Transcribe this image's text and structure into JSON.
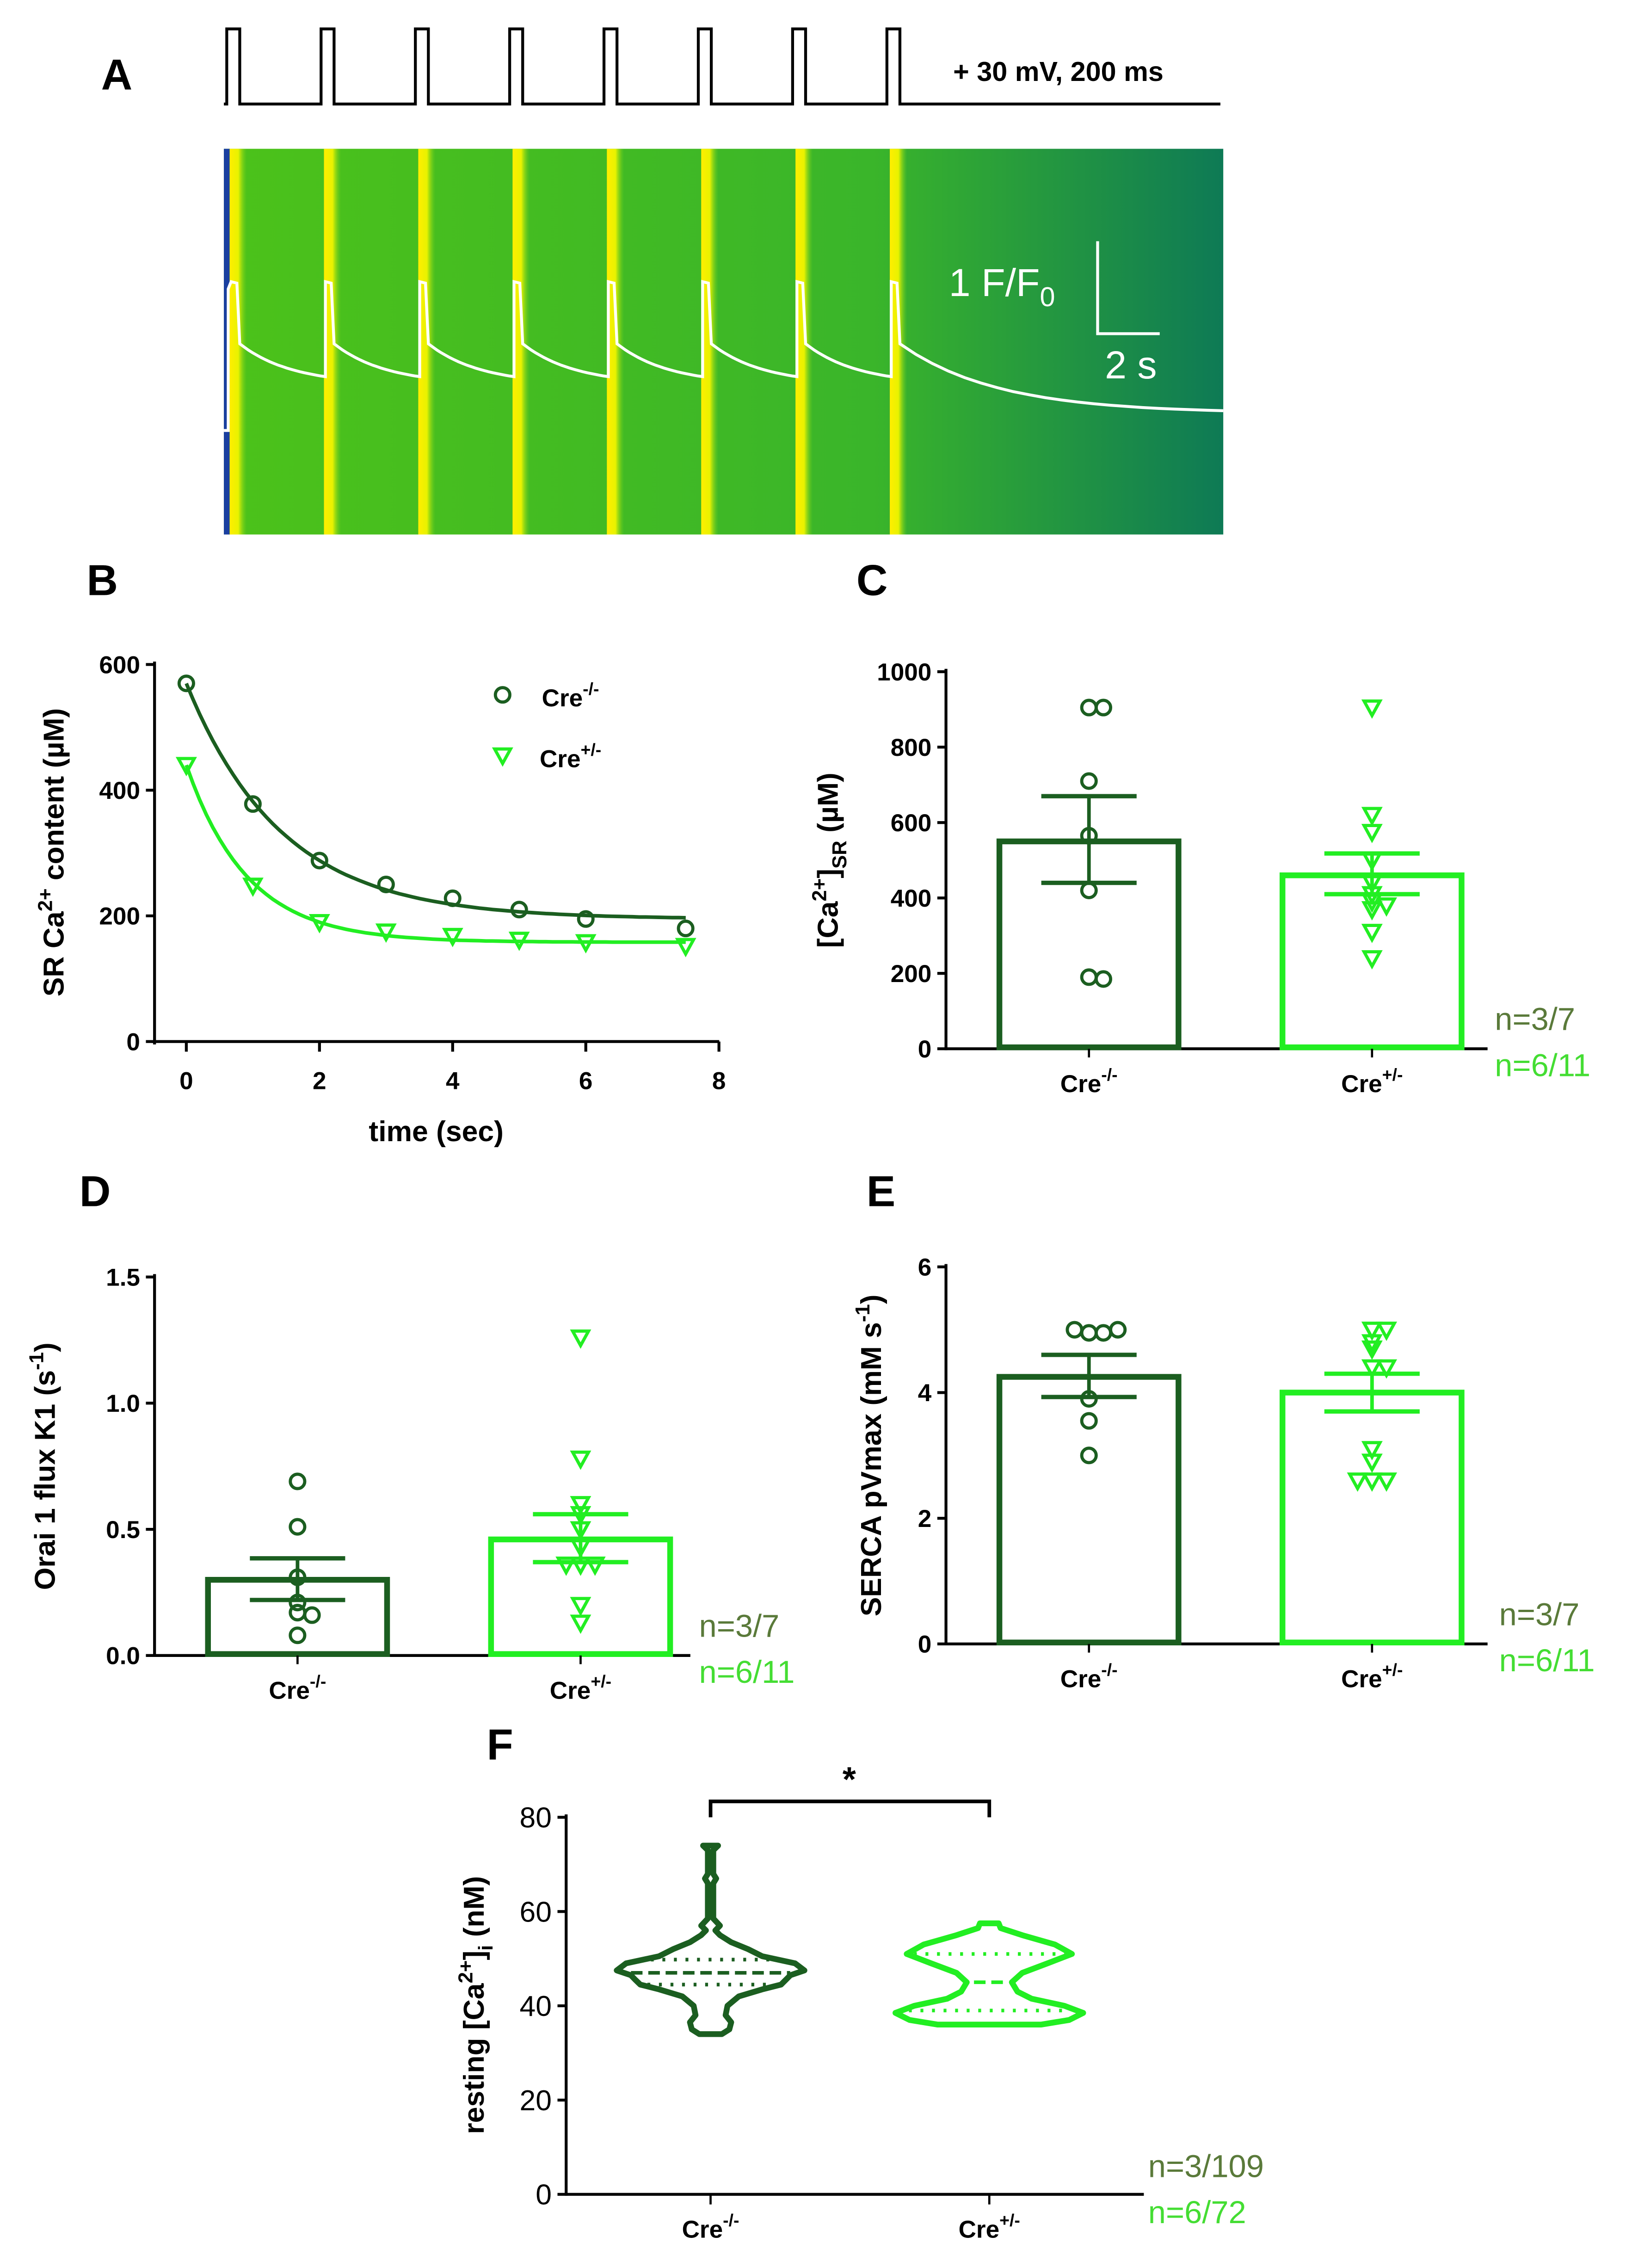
{
  "colors": {
    "ko": "#1b5e20",
    "het": "#22ee22",
    "n_ko": "#5a7a3a",
    "n_het": "#44dd33"
  },
  "panel_labels": {
    "a": "A",
    "b": "B",
    "c": "C",
    "d": "D",
    "e": "E",
    "f": "F"
  },
  "groups": {
    "base": "Cre",
    "ko_sup": "-/-",
    "het_sup": "+/-"
  },
  "panel_a": {
    "protocol_label": "+ 30 mV, 200 ms",
    "pulse_count": 8,
    "scale_y": "1 F/F",
    "scale_y_sub": "0",
    "scale_x": "2 s"
  },
  "chart_data": [
    {
      "panel": "B",
      "type": "line",
      "xlabel": "time (sec)",
      "ylabel_parts": [
        "SR  Ca",
        "2+",
        " content (µM)"
      ],
      "xlim": [
        0,
        8
      ],
      "ylim": [
        0,
        600
      ],
      "xticks": [
        "0",
        "2",
        "4",
        "6",
        "8"
      ],
      "yticks": [
        "0",
        "200",
        "400",
        "600"
      ],
      "legend": "top-right",
      "x": [
        0,
        1,
        2,
        3,
        4,
        5,
        6,
        7.5
      ],
      "series": [
        {
          "name": "Cre-/-",
          "marker": "circle",
          "values": [
            570,
            378,
            288,
            250,
            228,
            210,
            195,
            180
          ],
          "fit_plateau": 195
        },
        {
          "name": "Cre+/-",
          "marker": "triangle-down",
          "values": [
            440,
            248,
            190,
            175,
            168,
            162,
            158,
            152
          ],
          "fit_plateau": 158
        }
      ]
    },
    {
      "panel": "C",
      "type": "bar",
      "ylabel_parts": [
        "[Ca",
        "2+",
        "]",
        "SR",
        " (µM)"
      ],
      "ylim": [
        0,
        1000
      ],
      "yticks": [
        "0",
        "200",
        "400",
        "600",
        "800",
        "1000"
      ],
      "bars": [
        {
          "mean": 550,
          "sem_low": 440,
          "sem_high": 670,
          "points": [
            905,
            905,
            710,
            565,
            420,
            190,
            185
          ]
        },
        {
          "mean": 460,
          "sem_low": 410,
          "sem_high": 518,
          "points": [
            905,
            620,
            575,
            500,
            440,
            410,
            390,
            380,
            370,
            310,
            240
          ]
        }
      ],
      "n_labels": [
        "n=3/7",
        "n=6/11"
      ]
    },
    {
      "panel": "D",
      "type": "bar",
      "ylabel_parts": [
        "Orai 1 flux K1 (s",
        "-1",
        ")"
      ],
      "ylim": [
        0,
        1.5
      ],
      "yticks": [
        "0.0",
        "0.5",
        "1.0",
        "1.5"
      ],
      "bars": [
        {
          "mean": 0.3,
          "sem_low": 0.22,
          "sem_high": 0.385,
          "points": [
            0.69,
            0.51,
            0.31,
            0.21,
            0.17,
            0.16,
            0.08
          ]
        },
        {
          "mean": 0.46,
          "sem_low": 0.37,
          "sem_high": 0.56,
          "points": [
            1.26,
            0.78,
            0.6,
            0.56,
            0.5,
            0.43,
            0.36,
            0.36,
            0.36,
            0.2,
            0.13
          ]
        }
      ],
      "n_labels": [
        "n=3/7",
        "n=6/11"
      ]
    },
    {
      "panel": "E",
      "type": "bar",
      "ylabel_parts": [
        "SERCA pVmax (mM s",
        "-1",
        ")"
      ],
      "ylim": [
        0,
        6
      ],
      "yticks": [
        "0",
        "2",
        "4",
        "6"
      ],
      "bars": [
        {
          "mean": 4.25,
          "sem_low": 3.93,
          "sem_high": 4.6,
          "points": [
            4.95,
            4.95,
            5.0,
            5.0,
            3.9,
            3.55,
            3.0
          ]
        },
        {
          "mean": 4.0,
          "sem_low": 3.7,
          "sem_high": 4.3,
          "points": [
            5.0,
            5.0,
            4.8,
            4.7,
            4.4,
            4.4,
            3.1,
            2.9,
            2.6,
            2.6,
            2.6
          ]
        }
      ],
      "n_labels": [
        "n=3/7",
        "n=6/11"
      ]
    },
    {
      "panel": "F",
      "type": "violin",
      "ylabel_parts": [
        "resting [Ca",
        "2+",
        "]",
        "i",
        " (nM)"
      ],
      "ylim": [
        0,
        80
      ],
      "yticks": [
        "0",
        "20",
        "40",
        "60",
        "80"
      ],
      "significance": "*",
      "violins": [
        {
          "median": 47,
          "q1": 44.5,
          "q3": 49.8,
          "density": [
            [
              34,
              0.12
            ],
            [
              35,
              0.2
            ],
            [
              36.5,
              0.22
            ],
            [
              38,
              0.16
            ],
            [
              40,
              0.18
            ],
            [
              42,
              0.3
            ],
            [
              43.5,
              0.55
            ],
            [
              44.5,
              0.75
            ],
            [
              45.5,
              0.8
            ],
            [
              46.5,
              0.85
            ],
            [
              47.5,
              1.0
            ],
            [
              49,
              0.9
            ],
            [
              50.5,
              0.55
            ],
            [
              52,
              0.4
            ],
            [
              53.5,
              0.22
            ],
            [
              55,
              0.1
            ],
            [
              56,
              0.05
            ],
            [
              57,
              0.1
            ],
            [
              58.5,
              0.03
            ],
            [
              66,
              0.03
            ],
            [
              67,
              0.06
            ],
            [
              68,
              0.03
            ],
            [
              73,
              0.03
            ],
            [
              74,
              0.08
            ]
          ]
        },
        {
          "median": 45,
          "q1": 39,
          "q3": 51,
          "density": [
            [
              36,
              0.55
            ],
            [
              37,
              0.85
            ],
            [
              38.5,
              1.0
            ],
            [
              40,
              0.8
            ],
            [
              41.5,
              0.45
            ],
            [
              43,
              0.3
            ],
            [
              45,
              0.24
            ],
            [
              47,
              0.35
            ],
            [
              49,
              0.62
            ],
            [
              51,
              0.88
            ],
            [
              53,
              0.7
            ],
            [
              55,
              0.35
            ],
            [
              56.5,
              0.12
            ],
            [
              57.5,
              0.1
            ]
          ]
        }
      ],
      "n_labels": [
        "n=3/109",
        "n=6/72"
      ]
    }
  ]
}
